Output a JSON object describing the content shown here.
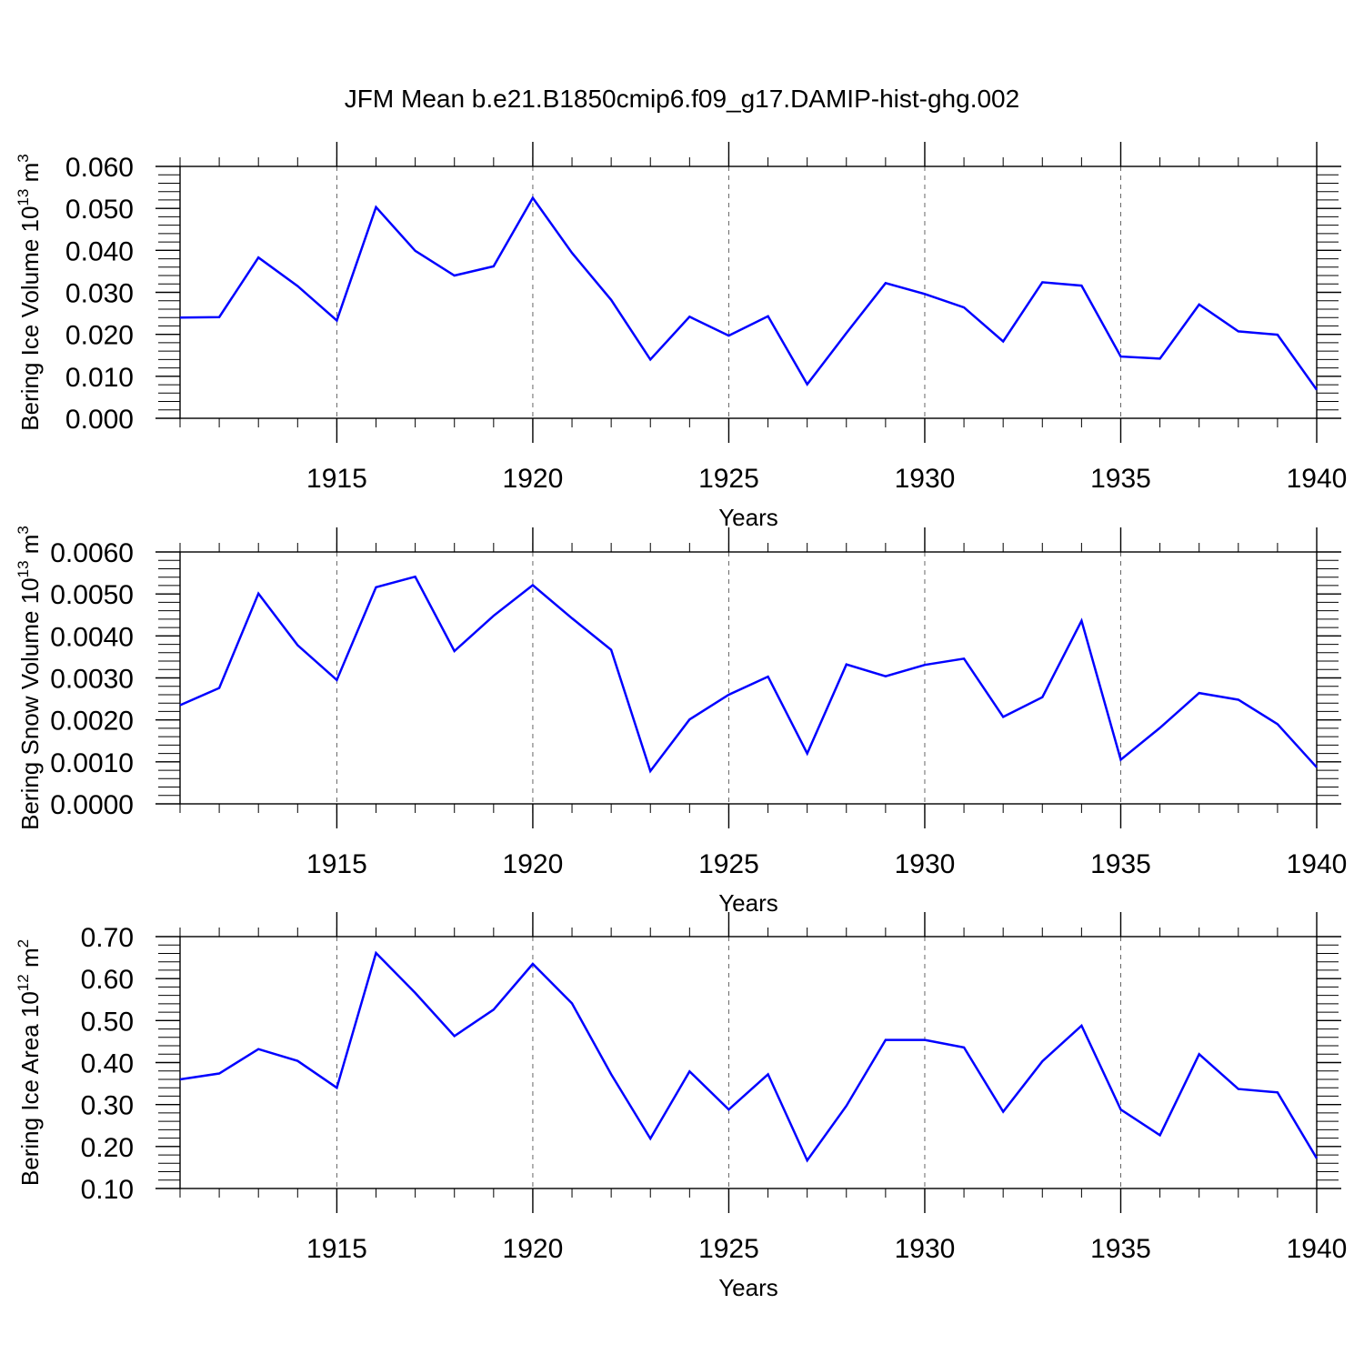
{
  "title": "JFM Mean b.e21.B1850cmip6.f09_g17.DAMIP-hist-ghg.002",
  "colors": {
    "line": "#0000ff",
    "axis": "#000000",
    "grid": "#666666",
    "background": "#ffffff"
  },
  "chart_data": [
    {
      "type": "line",
      "ylabel": {
        "main": "Bering Ice Volume 10",
        "exp": "13",
        "unit": " m",
        "unit_exp": "3"
      },
      "xlabel": "Years",
      "xlim": [
        1911,
        1940
      ],
      "ylim": [
        0.0,
        0.06
      ],
      "yticks": [
        0.0,
        0.01,
        0.02,
        0.03,
        0.04,
        0.05,
        0.06
      ],
      "ytick_labels": [
        "0.000",
        "0.010",
        "0.020",
        "0.030",
        "0.040",
        "0.050",
        "0.060"
      ],
      "xticks": [
        1915,
        1920,
        1925,
        1930,
        1935,
        1940
      ],
      "xtick_labels": [
        "1915",
        "1920",
        "1925",
        "1930",
        "1935",
        "1940"
      ],
      "grid": "vertical dashed at major x ticks",
      "x": [
        1911,
        1912,
        1913,
        1914,
        1915,
        1916,
        1917,
        1918,
        1919,
        1920,
        1921,
        1922,
        1923,
        1924,
        1925,
        1926,
        1927,
        1928,
        1929,
        1930,
        1931,
        1932,
        1933,
        1934,
        1935,
        1936,
        1937,
        1938,
        1939,
        1940
      ],
      "y": [
        0.024,
        0.0241,
        0.0383,
        0.0315,
        0.0233,
        0.0503,
        0.0399,
        0.034,
        0.0362,
        0.0525,
        0.0394,
        0.0282,
        0.014,
        0.0242,
        0.0197,
        0.0243,
        0.0081,
        0.0203,
        0.0322,
        0.0296,
        0.0264,
        0.0183,
        0.0324,
        0.0316,
        0.0147,
        0.0142,
        0.0271,
        0.0207,
        0.0199,
        0.0068
      ]
    },
    {
      "type": "line",
      "ylabel": {
        "main": "Bering Snow Volume 10",
        "exp": "13",
        "unit": " m",
        "unit_exp": "3"
      },
      "xlabel": "Years",
      "xlim": [
        1911,
        1940
      ],
      "ylim": [
        0.0,
        0.006
      ],
      "yticks": [
        0.0,
        0.001,
        0.002,
        0.003,
        0.004,
        0.005,
        0.006
      ],
      "ytick_labels": [
        "0.0000",
        "0.0010",
        "0.0020",
        "0.0030",
        "0.0040",
        "0.0050",
        "0.0060"
      ],
      "xticks": [
        1915,
        1920,
        1925,
        1930,
        1935,
        1940
      ],
      "xtick_labels": [
        "1915",
        "1920",
        "1925",
        "1930",
        "1935",
        "1940"
      ],
      "grid": "vertical dashed at major x ticks",
      "x": [
        1911,
        1912,
        1913,
        1914,
        1915,
        1916,
        1917,
        1918,
        1919,
        1920,
        1921,
        1922,
        1923,
        1924,
        1925,
        1926,
        1927,
        1928,
        1929,
        1930,
        1931,
        1932,
        1933,
        1934,
        1935,
        1936,
        1937,
        1938,
        1939,
        1940
      ],
      "y": [
        0.00235,
        0.00276,
        0.00501,
        0.00378,
        0.00295,
        0.00516,
        0.00541,
        0.00364,
        0.00448,
        0.00521,
        0.00442,
        0.00367,
        0.00078,
        0.00201,
        0.0026,
        0.00303,
        0.0012,
        0.00332,
        0.00304,
        0.00331,
        0.00346,
        0.00207,
        0.00254,
        0.00436,
        0.00105,
        0.00181,
        0.00264,
        0.00248,
        0.0019,
        0.00087
      ]
    },
    {
      "type": "line",
      "ylabel": {
        "main": "Bering Ice Area 10",
        "exp": "12",
        "unit": " m",
        "unit_exp": "2"
      },
      "xlabel": "Years",
      "xlim": [
        1911,
        1940
      ],
      "ylim": [
        0.1,
        0.7
      ],
      "yticks": [
        0.1,
        0.2,
        0.3,
        0.4,
        0.5,
        0.6,
        0.7
      ],
      "ytick_labels": [
        "0.10",
        "0.20",
        "0.30",
        "0.40",
        "0.50",
        "0.60",
        "0.70"
      ],
      "xticks": [
        1915,
        1920,
        1925,
        1930,
        1935,
        1940
      ],
      "xtick_labels": [
        "1915",
        "1920",
        "1925",
        "1930",
        "1935",
        "1940"
      ],
      "grid": "vertical dashed at major x ticks",
      "x": [
        1911,
        1912,
        1913,
        1914,
        1915,
        1916,
        1917,
        1918,
        1919,
        1920,
        1921,
        1922,
        1923,
        1924,
        1925,
        1926,
        1927,
        1928,
        1929,
        1930,
        1931,
        1932,
        1933,
        1934,
        1935,
        1936,
        1937,
        1938,
        1939,
        1940
      ],
      "y": [
        0.36,
        0.374,
        0.432,
        0.404,
        0.34,
        0.661,
        0.566,
        0.463,
        0.526,
        0.635,
        0.541,
        0.372,
        0.219,
        0.379,
        0.288,
        0.372,
        0.167,
        0.297,
        0.454,
        0.454,
        0.436,
        0.283,
        0.403,
        0.488,
        0.288,
        0.227,
        0.42,
        0.337,
        0.329,
        0.172
      ]
    }
  ]
}
